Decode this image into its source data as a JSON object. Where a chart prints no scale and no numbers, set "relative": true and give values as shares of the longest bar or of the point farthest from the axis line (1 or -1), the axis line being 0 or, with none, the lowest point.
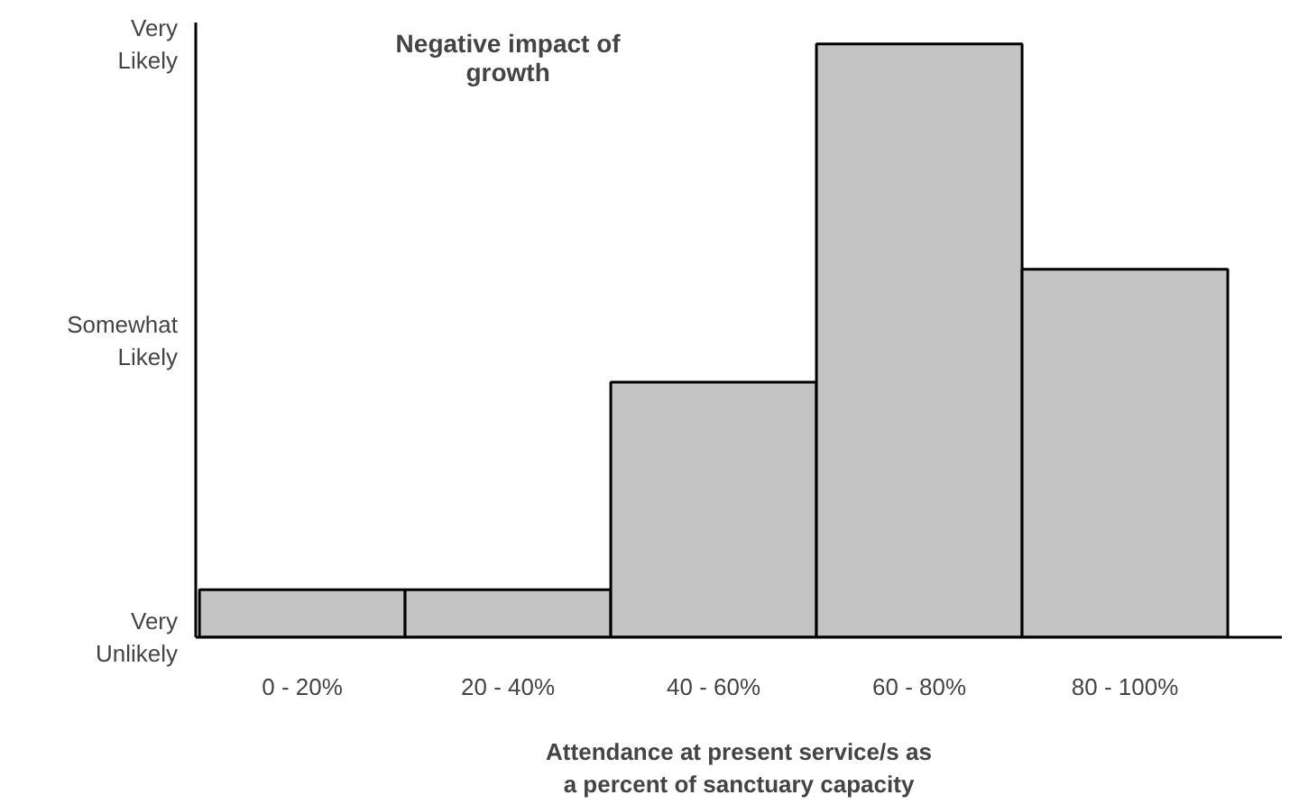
{
  "chart_data": {
    "type": "bar",
    "title": "Negative impact of growth",
    "xlabel": "Attendance at present service/s as a percent of sanctuary capacity",
    "categories": [
      "0 - 20%",
      "20 - 40%",
      "40 - 60%",
      "60 - 80%",
      "80 - 100%"
    ],
    "values": [
      0.08,
      0.08,
      0.43,
      1,
      0.62
    ],
    "color": "#c4c4c4",
    "relative": true,
    "annotations": [
      "Very Likely",
      "Somewhat Likely",
      "Very Unlikely"
    ],
    "grid": false
  }
}
